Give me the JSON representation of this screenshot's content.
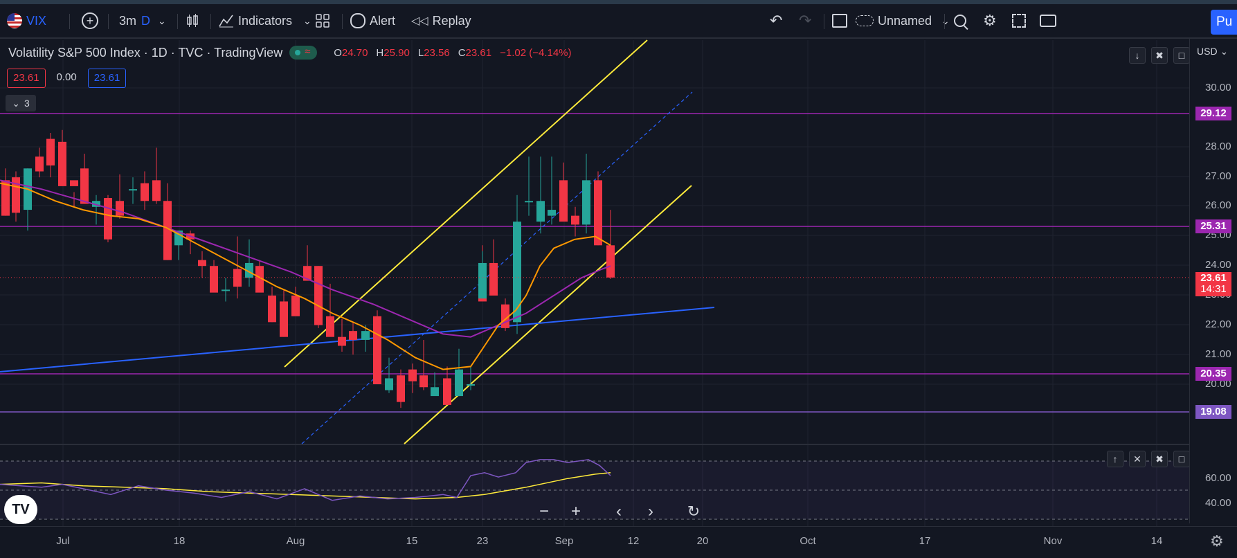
{
  "toolbar": {
    "symbol": "VIX",
    "add_symbol_icon": "plus-circle-icon",
    "interval_3m": "3m",
    "interval_d": "D",
    "indicators": "Indicators",
    "alert": "Alert",
    "replay": "Replay",
    "layout_name": "Unnamed",
    "publish": "Pu"
  },
  "legend": {
    "title": "Volatility S&P 500 Index · 1D · TVC · TradingView",
    "open_label": "O",
    "open": "24.70",
    "high_label": "H",
    "high": "25.90",
    "low_label": "L",
    "low": "23.56",
    "close_label": "C",
    "close": "23.61",
    "change": "−1.02 (−4.14%)",
    "value_boxes": [
      "23.61",
      "0.00",
      "23.61"
    ],
    "collapsed_count": "3"
  },
  "price_scale": {
    "currency": "USD",
    "ticks": [
      "30.00",
      "28.00",
      "27.00",
      "26.00",
      "25.00",
      "24.00",
      "23.00",
      "22.00",
      "21.00",
      "20.00"
    ],
    "levels": [
      {
        "price": "29.12",
        "color": "#9c27b0"
      },
      {
        "price": "25.31",
        "color": "#9c27b0"
      },
      {
        "price": "20.35",
        "color": "#9c27b0"
      },
      {
        "price": "19.08",
        "color": "#7e57c2"
      }
    ],
    "last_price": "23.61",
    "countdown": "14:31"
  },
  "rsi_scale": {
    "ticks": [
      "60.00",
      "40.00"
    ]
  },
  "time_axis": {
    "labels": [
      "Jul",
      "18",
      "Aug",
      "15",
      "23",
      "Sep",
      "12",
      "20",
      "Oct",
      "17",
      "Nov",
      "14"
    ]
  },
  "colors": {
    "up": "#26a69a",
    "down": "#f23645",
    "ema_fast": "#ff9800",
    "ema_slow": "#9c27b0",
    "channel": "#ffeb3b",
    "trendline": "#2962ff",
    "rsi": "#7e57c2",
    "rsi_ma": "#ffeb3b",
    "accent": "#2962ff"
  }
}
